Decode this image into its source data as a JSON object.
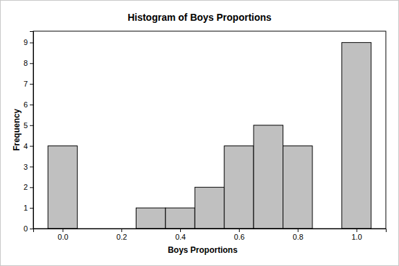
{
  "chart_data": {
    "type": "histogram",
    "title": "Histogram of Boys Proportions",
    "xlabel": "Boys Proportions",
    "ylabel": "Frequency",
    "bins": [
      -0.05,
      0.05,
      0.15,
      0.25,
      0.35,
      0.45,
      0.55,
      0.65,
      0.75,
      0.85,
      0.95,
      1.05
    ],
    "values": [
      4,
      0,
      0,
      1,
      1,
      2,
      4,
      5,
      4,
      0,
      9
    ],
    "color": "#c0c0c0",
    "xlim": [
      -0.1,
      1.1
    ],
    "xticks": [
      {
        "value": 0,
        "label": "0.0"
      },
      0.2,
      0.4,
      0.6,
      0.8,
      {
        "value": 1,
        "label": "1.0"
      }
    ],
    "ylim": [
      0,
      9.55
    ],
    "yticks": [
      0,
      1,
      2,
      3,
      4,
      5,
      6,
      7,
      8,
      9
    ]
  }
}
